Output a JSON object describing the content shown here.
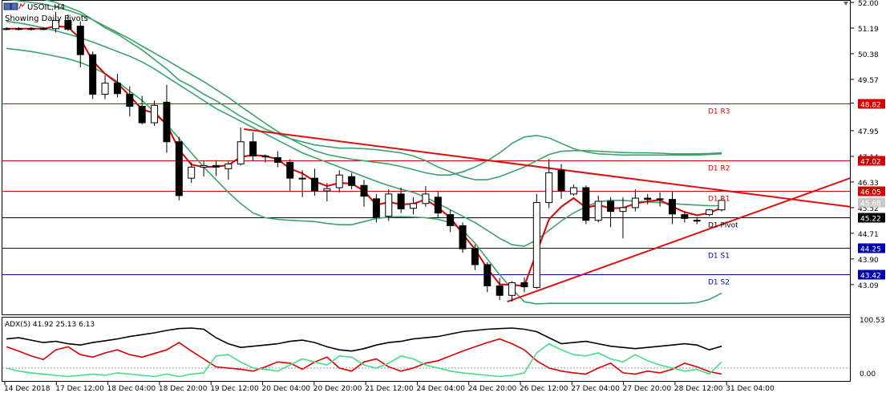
{
  "window": {
    "title": "USOIL,H4",
    "indicator_label": "Showing Daily Pivots"
  },
  "colors": {
    "background": "#ffffff",
    "frame": "#000000",
    "bull_candle": "#ffffff",
    "bear_candle": "#000000",
    "ma_red": "#dd0000",
    "bands_green": "#3aa36a",
    "resistance": "#d40000",
    "support": "#0000aa",
    "pivot": "#000000",
    "trendline": "#e01010",
    "adx_main": "#000000",
    "di_plus": "#44dd88",
    "di_minus": "#dd0000",
    "price_tag_red": "#d40000",
    "price_tag_blue": "#0000aa",
    "price_tag_grey": "#c8c8c8"
  },
  "chart_data": [
    {
      "type": "candlestick",
      "symbol": "USOIL",
      "timeframe": "H4",
      "y_axis": {
        "range": [
          42.2,
          52.0
        ],
        "ticks": [
          "52.00",
          "51.19",
          "50.38",
          "49.57",
          "48.82",
          "47.95",
          "47.14",
          "46.33",
          "45.52",
          "44.71",
          "43.90",
          "43.09"
        ]
      },
      "x_axis": {
        "tick_labels": [
          "14 Dec 2018",
          "17 Dec 12:00",
          "18 Dec 04:00",
          "18 Dec 20:00",
          "19 Dec 12:00",
          "20 Dec 04:00",
          "20 Dec 20:00",
          "21 Dec 12:00",
          "24 Dec 04:00",
          "24 Dec 20:00",
          "26 Dec 12:00",
          "27 Dec 04:00",
          "27 Dec 20:00",
          "28 Dec 12:00",
          "31 Dec 04:00"
        ]
      },
      "levels": [
        {
          "label": "D1 R3",
          "price": 48.82,
          "tag": "48.82",
          "role": "resistance"
        },
        {
          "label": "D1 R2",
          "price": 47.02,
          "tag": "47.02",
          "role": "resistance"
        },
        {
          "label": "D1 R1",
          "price": 46.05,
          "tag": "46.05",
          "role": "resistance"
        },
        {
          "label": "D1 Pivot",
          "price": 45.22,
          "tag": "45.22",
          "role": "pivot"
        },
        {
          "label": "D1 S1",
          "price": 44.25,
          "tag": "44.25",
          "role": "support"
        },
        {
          "label": "D1 S2",
          "price": 43.42,
          "tag": "43.42",
          "role": "support"
        }
      ],
      "current_price": {
        "price": 45.68,
        "tag": "45.68"
      },
      "candles": [
        {
          "o": 51.17,
          "h": 51.22,
          "l": 51.12,
          "c": 51.17
        },
        {
          "o": 51.17,
          "h": 51.22,
          "l": 51.12,
          "c": 51.17
        },
        {
          "o": 51.17,
          "h": 51.22,
          "l": 51.12,
          "c": 51.17
        },
        {
          "o": 51.17,
          "h": 51.22,
          "l": 51.12,
          "c": 51.17
        },
        {
          "o": 51.17,
          "h": 51.7,
          "l": 51.05,
          "c": 51.43
        },
        {
          "o": 51.43,
          "h": 51.62,
          "l": 51.1,
          "c": 51.15
        },
        {
          "o": 51.25,
          "h": 51.4,
          "l": 49.95,
          "c": 50.35
        },
        {
          "o": 50.35,
          "h": 50.45,
          "l": 48.95,
          "c": 49.1
        },
        {
          "o": 49.1,
          "h": 49.7,
          "l": 48.95,
          "c": 49.45
        },
        {
          "o": 49.45,
          "h": 49.75,
          "l": 49.0,
          "c": 49.12
        },
        {
          "o": 49.1,
          "h": 49.35,
          "l": 48.4,
          "c": 48.72
        },
        {
          "o": 48.72,
          "h": 49.05,
          "l": 48.15,
          "c": 48.2
        },
        {
          "o": 48.2,
          "h": 48.9,
          "l": 48.1,
          "c": 48.75
        },
        {
          "o": 48.85,
          "h": 49.4,
          "l": 47.25,
          "c": 47.6
        },
        {
          "o": 47.6,
          "h": 47.75,
          "l": 45.75,
          "c": 45.9
        },
        {
          "o": 46.45,
          "h": 46.95,
          "l": 46.3,
          "c": 46.8
        },
        {
          "o": 46.8,
          "h": 47.0,
          "l": 46.5,
          "c": 46.85
        },
        {
          "o": 46.85,
          "h": 47.02,
          "l": 46.52,
          "c": 46.8
        },
        {
          "o": 46.75,
          "h": 47.0,
          "l": 46.4,
          "c": 46.9
        },
        {
          "o": 46.9,
          "h": 48.05,
          "l": 46.85,
          "c": 47.6
        },
        {
          "o": 47.6,
          "h": 47.9,
          "l": 47.0,
          "c": 47.15
        },
        {
          "o": 47.15,
          "h": 47.2,
          "l": 46.95,
          "c": 47.12
        },
        {
          "o": 47.1,
          "h": 47.3,
          "l": 46.8,
          "c": 46.95
        },
        {
          "o": 46.95,
          "h": 47.05,
          "l": 46.05,
          "c": 46.45
        },
        {
          "o": 46.45,
          "h": 46.7,
          "l": 45.85,
          "c": 46.45
        },
        {
          "o": 46.45,
          "h": 46.75,
          "l": 45.9,
          "c": 46.05
        },
        {
          "o": 46.05,
          "h": 46.3,
          "l": 45.72,
          "c": 46.12
        },
        {
          "o": 46.15,
          "h": 46.7,
          "l": 46.0,
          "c": 46.55
        },
        {
          "o": 46.5,
          "h": 46.62,
          "l": 46.1,
          "c": 46.22
        },
        {
          "o": 46.22,
          "h": 46.4,
          "l": 45.55,
          "c": 45.88
        },
        {
          "o": 45.8,
          "h": 45.95,
          "l": 45.05,
          "c": 45.22
        },
        {
          "o": 45.25,
          "h": 46.1,
          "l": 45.1,
          "c": 45.95
        },
        {
          "o": 45.95,
          "h": 46.15,
          "l": 45.35,
          "c": 45.48
        },
        {
          "o": 45.5,
          "h": 45.85,
          "l": 45.3,
          "c": 45.65
        },
        {
          "o": 45.65,
          "h": 46.2,
          "l": 45.55,
          "c": 45.95
        },
        {
          "o": 45.85,
          "h": 46.05,
          "l": 45.2,
          "c": 45.35
        },
        {
          "o": 45.3,
          "h": 45.45,
          "l": 44.75,
          "c": 44.95
        },
        {
          "o": 44.95,
          "h": 45.05,
          "l": 44.1,
          "c": 44.22
        },
        {
          "o": 44.22,
          "h": 44.35,
          "l": 43.55,
          "c": 43.72
        },
        {
          "o": 43.72,
          "h": 43.8,
          "l": 42.85,
          "c": 43.05
        },
        {
          "o": 43.05,
          "h": 43.3,
          "l": 42.6,
          "c": 42.75
        },
        {
          "o": 42.75,
          "h": 43.2,
          "l": 42.55,
          "c": 43.15
        },
        {
          "o": 43.15,
          "h": 43.32,
          "l": 42.85,
          "c": 43.02
        },
        {
          "o": 43.0,
          "h": 45.95,
          "l": 42.95,
          "c": 45.68
        },
        {
          "o": 45.68,
          "h": 47.05,
          "l": 45.5,
          "c": 46.62
        },
        {
          "o": 46.7,
          "h": 46.9,
          "l": 45.8,
          "c": 46.05
        },
        {
          "o": 45.95,
          "h": 46.25,
          "l": 45.9,
          "c": 46.15
        },
        {
          "o": 46.15,
          "h": 46.22,
          "l": 45.0,
          "c": 45.12
        },
        {
          "o": 45.12,
          "h": 45.9,
          "l": 45.05,
          "c": 45.72
        },
        {
          "o": 45.72,
          "h": 45.85,
          "l": 44.9,
          "c": 45.4
        },
        {
          "o": 45.4,
          "h": 45.85,
          "l": 44.55,
          "c": 45.52
        },
        {
          "o": 45.52,
          "h": 46.1,
          "l": 45.4,
          "c": 45.82
        },
        {
          "o": 45.82,
          "h": 45.95,
          "l": 45.62,
          "c": 45.78
        },
        {
          "o": 45.78,
          "h": 46.0,
          "l": 45.55,
          "c": 45.8
        },
        {
          "o": 45.78,
          "h": 46.02,
          "l": 45.0,
          "c": 45.32
        },
        {
          "o": 45.3,
          "h": 45.4,
          "l": 45.05,
          "c": 45.18
        },
        {
          "o": 45.1,
          "h": 45.22,
          "l": 45.0,
          "c": 45.12
        },
        {
          "o": 45.3,
          "h": 45.48,
          "l": 45.25,
          "c": 45.45
        },
        {
          "o": 45.45,
          "h": 45.9,
          "l": 45.4,
          "c": 45.75
        }
      ],
      "moving_average": [
        51.17,
        51.17,
        51.17,
        51.17,
        51.25,
        51.22,
        50.85,
        50.15,
        49.75,
        49.45,
        49.05,
        48.62,
        48.5,
        48.15,
        47.35,
        46.88,
        46.8,
        46.82,
        46.86,
        47.12,
        47.18,
        47.15,
        47.05,
        46.75,
        46.6,
        46.35,
        46.2,
        46.3,
        46.28,
        46.05,
        45.6,
        45.7,
        45.62,
        45.64,
        45.78,
        45.52,
        45.2,
        44.7,
        44.2,
        43.6,
        43.1,
        43.08,
        43.05,
        44.1,
        45.15,
        45.55,
        45.82,
        45.52,
        45.6,
        45.5,
        45.51,
        45.65,
        45.72,
        45.76,
        45.55,
        45.38,
        45.28,
        45.35,
        45.52
      ],
      "band_upper": [
        52.4,
        52.3,
        52.2,
        52.1,
        52.0,
        51.85,
        51.7,
        51.45,
        51.2,
        51.0,
        50.75,
        50.5,
        50.2,
        49.9,
        49.55,
        49.35,
        49.1,
        48.9,
        48.65,
        48.4,
        48.2,
        48.0,
        47.85,
        47.7,
        47.6,
        47.5,
        47.45,
        47.4,
        47.4,
        47.38,
        47.35,
        47.3,
        47.25,
        47.15,
        47.0,
        46.8,
        46.65,
        46.5,
        46.4,
        46.4,
        46.5,
        46.65,
        46.8,
        47.0,
        47.2,
        47.3,
        47.32,
        47.32,
        47.3,
        47.28,
        47.26,
        47.25,
        47.25,
        47.24,
        47.22,
        47.22,
        47.22,
        47.23,
        47.25
      ],
      "band_middle": [
        51.4,
        51.35,
        51.28,
        51.2,
        51.1,
        51.0,
        50.88,
        50.75,
        50.6,
        50.45,
        50.3,
        50.12,
        49.9,
        49.65,
        49.4,
        49.15,
        48.9,
        48.65,
        48.45,
        48.25,
        48.05,
        47.85,
        47.65,
        47.45,
        47.25,
        47.1,
        46.95,
        46.8,
        46.65,
        46.5,
        46.35,
        46.22,
        46.1,
        46.0,
        45.85,
        45.65,
        45.45,
        45.25,
        45.05,
        44.8,
        44.55,
        44.35,
        44.3,
        44.5,
        44.8,
        45.1,
        45.35,
        45.55,
        45.7,
        45.75,
        45.75,
        45.72,
        45.7,
        45.68,
        45.65,
        45.62,
        45.6,
        45.58,
        45.58
      ],
      "band_lower": [
        50.55,
        50.5,
        50.45,
        50.38,
        50.3,
        50.22,
        50.1,
        49.95,
        49.75,
        49.5,
        49.2,
        48.9,
        48.55,
        48.15,
        47.7,
        47.25,
        46.8,
        46.4,
        46.0,
        45.65,
        45.35,
        45.2,
        45.15,
        45.12,
        45.1,
        45.08,
        45.02,
        44.98,
        44.98,
        45.08,
        45.18,
        45.22,
        45.24,
        45.22,
        45.2,
        45.15,
        45.05,
        44.8,
        44.4,
        43.9,
        43.4,
        42.95,
        42.55,
        42.48,
        42.5,
        42.5,
        42.5,
        42.5,
        42.5,
        42.5,
        42.5,
        42.5,
        42.5,
        42.5,
        42.5,
        42.5,
        42.52,
        42.62,
        42.82
      ],
      "bands_green_upper": [
        52.1,
        52.05,
        52.0,
        51.95,
        51.85,
        51.75,
        51.62,
        51.45,
        51.25,
        51.05,
        50.85,
        50.62,
        50.4,
        50.18,
        49.95,
        49.72,
        49.5,
        49.25,
        49.0,
        48.72,
        48.45,
        48.18,
        47.92,
        47.7,
        47.5,
        47.32,
        47.2,
        47.12,
        47.05,
        47.0,
        46.95,
        46.9,
        46.82,
        46.72,
        46.62,
        46.55,
        46.55,
        46.65,
        46.8,
        47.0,
        47.25,
        47.55,
        47.75,
        47.8,
        47.72,
        47.55,
        47.38,
        47.28,
        47.22,
        47.2,
        47.18,
        47.18,
        47.18,
        47.18,
        47.18,
        47.18,
        47.18,
        47.2,
        47.22
      ]
    },
    {
      "type": "line",
      "indicator": "ADX(5)",
      "header_values": [
        "41.92",
        "25.13",
        "6.13"
      ],
      "y_axis": {
        "ticks": [
          "100.53",
          "0.00"
        ],
        "range": [
          0,
          100.53
        ],
        "level": 20
      },
      "series": [
        {
          "role": "adx",
          "values": [
            68,
            70,
            66,
            62,
            64,
            60,
            58,
            62,
            65,
            68,
            72,
            75,
            78,
            82,
            85,
            86,
            84,
            70,
            60,
            54,
            56,
            58,
            60,
            64,
            66,
            62,
            55,
            50,
            48,
            52,
            58,
            62,
            64,
            68,
            70,
            72,
            76,
            80,
            82,
            84,
            85,
            86,
            84,
            80,
            70,
            60,
            62,
            64,
            60,
            56,
            54,
            52,
            54,
            56,
            58,
            60,
            58,
            50,
            56
          ]
        },
        {
          "role": "di_minus",
          "values": [
            55,
            48,
            40,
            34,
            50,
            55,
            42,
            38,
            45,
            50,
            42,
            38,
            44,
            50,
            62,
            48,
            35,
            22,
            20,
            18,
            15,
            22,
            30,
            28,
            18,
            30,
            38,
            20,
            15,
            30,
            35,
            22,
            15,
            20,
            28,
            32,
            40,
            48,
            55,
            62,
            68,
            60,
            50,
            32,
            20,
            15,
            12,
            10,
            20,
            28,
            12,
            10,
            15,
            12,
            18,
            28,
            22,
            14,
            10
          ]
        },
        {
          "role": "di_plus",
          "values": [
            20,
            15,
            12,
            10,
            8,
            6,
            8,
            10,
            8,
            12,
            10,
            8,
            6,
            10,
            6,
            10,
            12,
            40,
            42,
            30,
            20,
            18,
            15,
            25,
            35,
            30,
            25,
            40,
            38,
            25,
            20,
            28,
            40,
            35,
            25,
            20,
            15,
            12,
            10,
            8,
            6,
            8,
            12,
            45,
            60,
            50,
            42,
            40,
            45,
            35,
            30,
            42,
            32,
            25,
            20,
            15,
            18,
            10,
            30
          ]
        }
      ]
    }
  ]
}
